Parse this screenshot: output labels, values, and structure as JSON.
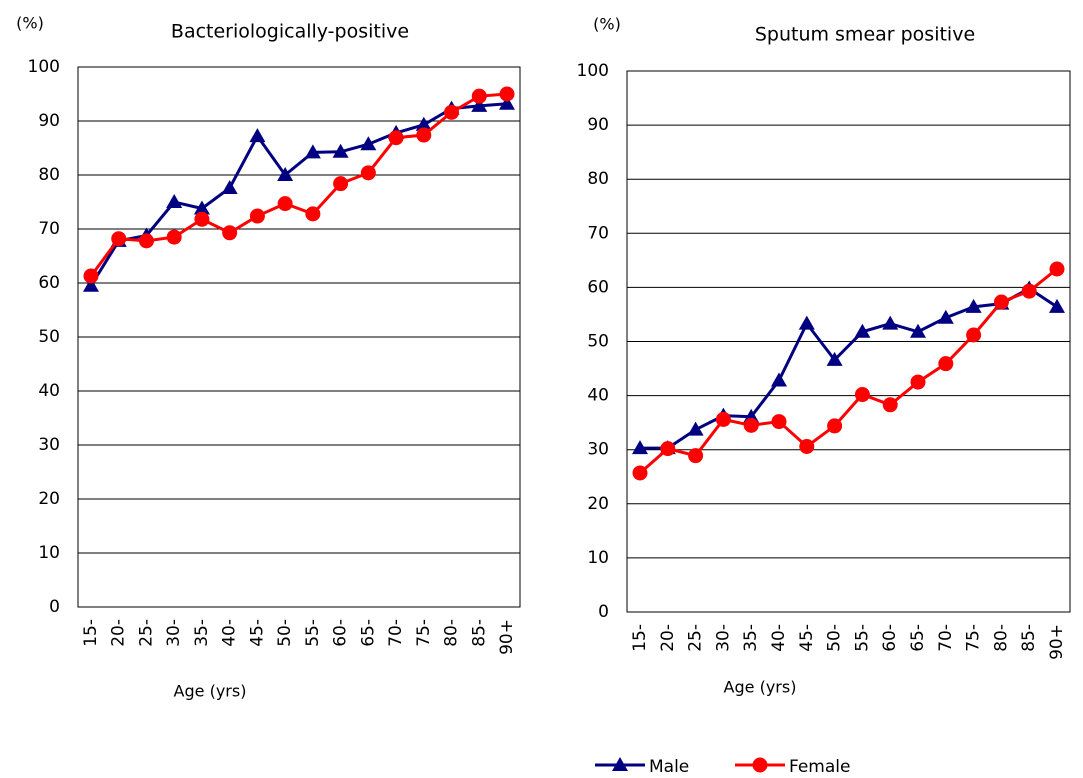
{
  "chart_data": [
    {
      "type": "line",
      "title": "Bacteriologically-positive",
      "ylabel": "(%)",
      "xlabel": "Age (yrs)",
      "categories": [
        "15-",
        "20-",
        "25-",
        "30-",
        "35-",
        "40-",
        "45-",
        "50-",
        "55-",
        "60-",
        "65-",
        "70-",
        "75-",
        "80-",
        "85-",
        "90+"
      ],
      "series": [
        {
          "name": "Male",
          "color": "#000080",
          "marker": "triangle",
          "values": [
            59.5,
            67.8,
            68.8,
            75,
            73.8,
            77.6,
            87.2,
            80,
            84.2,
            84.3,
            85.7,
            87.8,
            89.3,
            92.3,
            92.8,
            93.2
          ]
        },
        {
          "name": "Female",
          "color": "#ff0000",
          "marker": "circle",
          "values": [
            61.3,
            68.2,
            67.8,
            68.5,
            71.8,
            69.3,
            72.4,
            74.7,
            72.8,
            78.4,
            80.4,
            86.9,
            87.4,
            91.6,
            94.6,
            95.0
          ]
        }
      ],
      "ylim": [
        0,
        100
      ],
      "yticks": [
        0,
        10,
        20,
        30,
        40,
        50,
        60,
        70,
        80,
        90,
        100
      ],
      "grid": true
    },
    {
      "type": "line",
      "title": "Sputum smear positive",
      "ylabel": "(%)",
      "xlabel": "Age (yrs)",
      "categories": [
        "15-",
        "20-",
        "25-",
        "30-",
        "35-",
        "40-",
        "45-",
        "50-",
        "55-",
        "60-",
        "65-",
        "70-",
        "75-",
        "80-",
        "85-",
        "90+"
      ],
      "series": [
        {
          "name": "Male",
          "color": "#000080",
          "marker": "triangle",
          "values": [
            30.3,
            30.3,
            33.7,
            36.3,
            36.1,
            42.8,
            53.3,
            46.6,
            51.8,
            53.3,
            51.8,
            54.4,
            56.4,
            57,
            59.8,
            56.4
          ]
        },
        {
          "name": "Female",
          "color": "#ff0000",
          "marker": "circle",
          "values": [
            25.7,
            30.2,
            28.9,
            35.6,
            34.5,
            35.2,
            30.6,
            34.4,
            40.2,
            38.3,
            42.5,
            45.9,
            51.2,
            57.3,
            59.3,
            63.4
          ]
        }
      ],
      "ylim": [
        0,
        100
      ],
      "yticks": [
        0,
        10,
        20,
        30,
        40,
        50,
        60,
        70,
        80,
        90,
        100
      ],
      "grid": true,
      "legend": "bottom"
    }
  ]
}
